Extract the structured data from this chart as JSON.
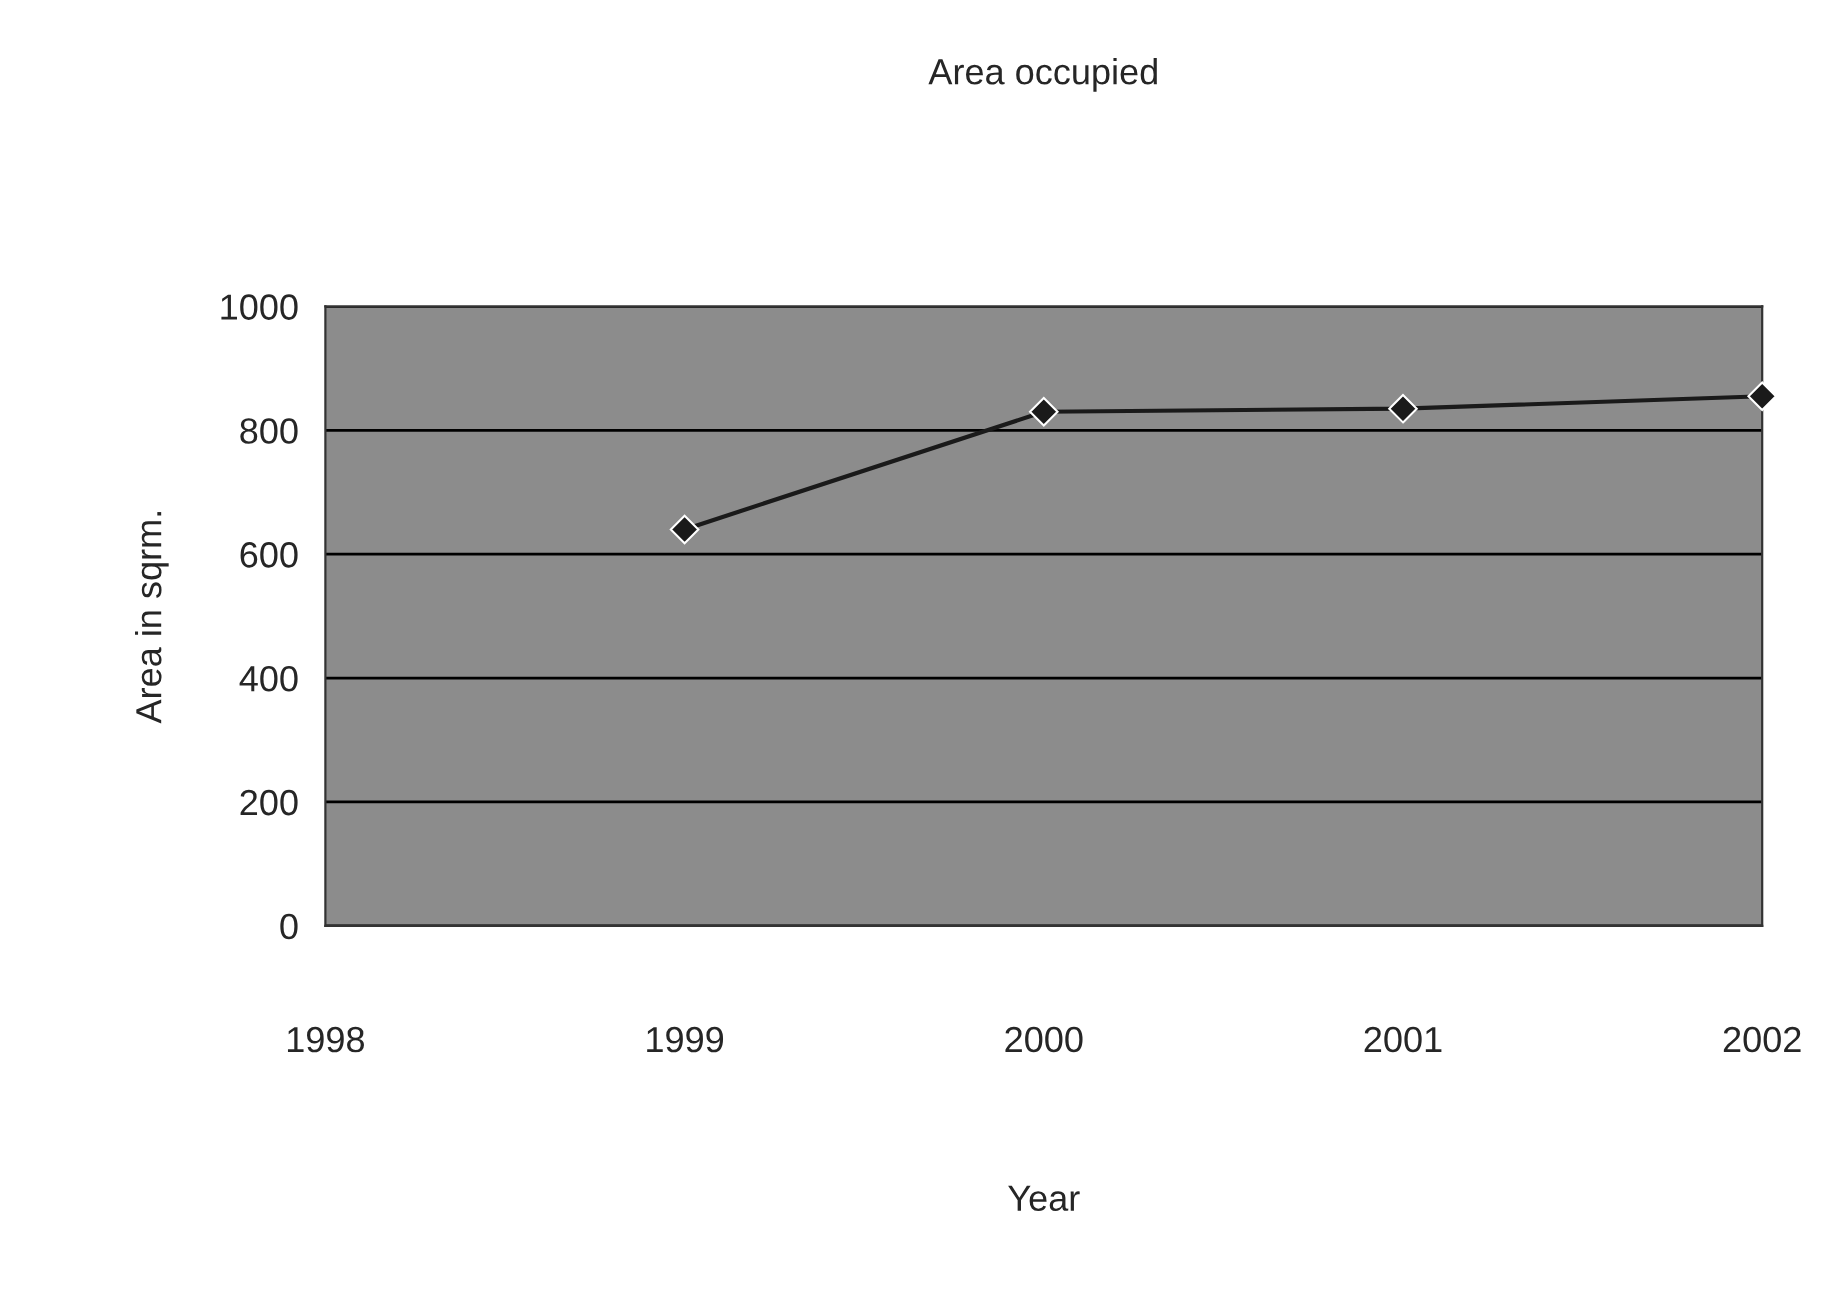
{
  "chart_data": {
    "type": "line",
    "title": "Area occupied",
    "xlabel": "Year",
    "ylabel": "Area in sqrm.",
    "x": [
      1999,
      2000,
      2001,
      2002
    ],
    "series": [
      {
        "color": "#1a1a1a",
        "values": [
          640,
          830,
          835,
          855
        ]
      }
    ],
    "xlim": [
      1998,
      2002
    ],
    "xticks": [
      1998,
      1999,
      2000,
      2001,
      2002
    ],
    "ylim": [
      0,
      1000
    ],
    "yticks": [
      0,
      200,
      400,
      600,
      800,
      1000
    ],
    "grid": "y",
    "marker": "diamond",
    "line_style": "solid"
  }
}
